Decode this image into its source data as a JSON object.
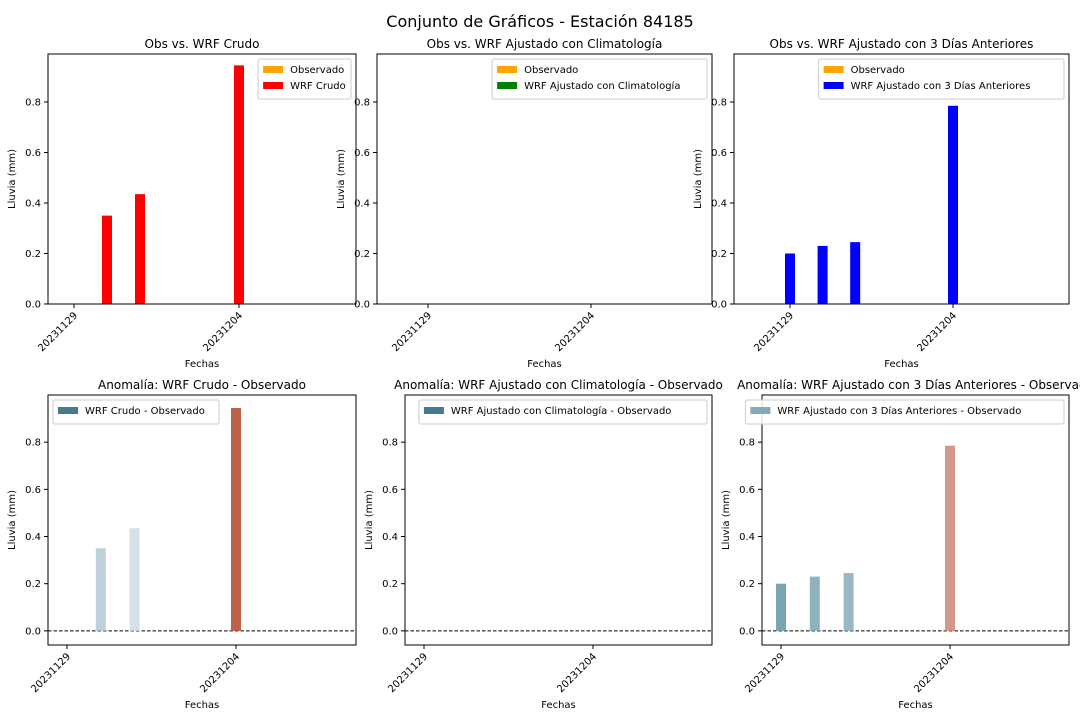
{
  "figure_title": "Conjunto de Gráficos - Estación 84185",
  "chart_data": [
    {
      "type": "bar",
      "title": "Obs vs. WRF Crudo",
      "xlabel": "Fechas",
      "ylabel": "Lluvia (mm)",
      "ylim": [
        0,
        0.99
      ],
      "yticks": [
        "0.0",
        "0.2",
        "0.4",
        "0.6",
        "0.8"
      ],
      "xticks": [
        "20231129",
        "20231204"
      ],
      "legend_position": "top-right",
      "series": [
        {
          "name": "Observado",
          "color": "#ffa500",
          "points": [
            {
              "date": "20231130",
              "value": 0
            },
            {
              "date": "20231201",
              "value": 0
            },
            {
              "date": "20231204",
              "value": 0
            }
          ]
        },
        {
          "name": "WRF Crudo",
          "color": "#ff0000",
          "points": [
            {
              "date": "20231130",
              "value": 0.35
            },
            {
              "date": "20231201",
              "value": 0.435
            },
            {
              "date": "20231204",
              "value": 0.945
            }
          ]
        }
      ]
    },
    {
      "type": "bar",
      "title": "Obs vs. WRF Ajustado con Climatología",
      "xlabel": "Fechas",
      "ylabel": "Lluvia (mm)",
      "ylim": [
        0,
        0.99
      ],
      "yticks": [
        "0.0",
        "0.2",
        "0.4",
        "0.6",
        "0.8"
      ],
      "xticks": [
        "20231129",
        "20231204"
      ],
      "legend_position": "top-right",
      "series": [
        {
          "name": "Observado",
          "color": "#ffa500",
          "points": []
        },
        {
          "name": "WRF Ajustado con Climatología",
          "color": "#008000",
          "points": []
        }
      ]
    },
    {
      "type": "bar",
      "title": "Obs vs. WRF Ajustado con 3 Días Anteriores",
      "xlabel": "Fechas",
      "ylabel": "Lluvia (mm)",
      "ylim": [
        0,
        0.99
      ],
      "yticks": [
        "0.0",
        "0.2",
        "0.4",
        "0.6",
        "0.8"
      ],
      "xticks": [
        "20231129",
        "20231204"
      ],
      "legend_position": "top-right",
      "series": [
        {
          "name": "Observado",
          "color": "#ffa500",
          "points": []
        },
        {
          "name": "WRF Ajustado con 3 Días Anteriores",
          "color": "#0000ff",
          "points": [
            {
              "date": "20231129",
              "value": 0.2
            },
            {
              "date": "20231130",
              "value": 0.23
            },
            {
              "date": "20231201",
              "value": 0.245
            },
            {
              "date": "20231204",
              "value": 0.785
            }
          ]
        }
      ]
    },
    {
      "type": "bar",
      "title": "Anomalía: WRF Crudo - Observado",
      "xlabel": "Fechas",
      "ylabel": "Lluvia (mm)",
      "ylim": [
        -0.06,
        1.0
      ],
      "yticks": [
        "0.0",
        "0.2",
        "0.4",
        "0.6",
        "0.8"
      ],
      "xticks": [
        "20231129",
        "20231204"
      ],
      "legend_position": "top-left",
      "zero_line": true,
      "series": [
        {
          "name": "WRF Crudo - Observado",
          "color": "#457b8f",
          "points": [
            {
              "date": "20231130",
              "value": 0.35,
              "color": "#bcd1da"
            },
            {
              "date": "20231201",
              "value": 0.435,
              "color": "#d5e1e6"
            },
            {
              "date": "20231204",
              "value": 0.945,
              "color": "#c0614a"
            }
          ]
        }
      ]
    },
    {
      "type": "bar",
      "title": "Anomalía: WRF Ajustado con Climatología - Observado",
      "xlabel": "Fechas",
      "ylabel": "Lluvia (mm)",
      "ylim": [
        -0.06,
        1.0
      ],
      "yticks": [
        "0.0",
        "0.2",
        "0.4",
        "0.6",
        "0.8"
      ],
      "xticks": [
        "20231129",
        "20231204"
      ],
      "legend_position": "top-right",
      "zero_line": true,
      "series": [
        {
          "name": "WRF Ajustado con Climatología - Observado",
          "color": "#457b8f",
          "points": []
        }
      ]
    },
    {
      "type": "bar",
      "title": "Anomalía: WRF Ajustado con 3 Días Anteriores - Observado",
      "xlabel": "Fechas",
      "ylabel": "Lluvia (mm)",
      "ylim": [
        -0.06,
        1.0
      ],
      "yticks": [
        "0.0",
        "0.2",
        "0.4",
        "0.6",
        "0.8"
      ],
      "xticks": [
        "20231129",
        "20231204"
      ],
      "legend_position": "top-right",
      "zero_line": true,
      "series": [
        {
          "name": "WRF Ajustado con 3 Días Anteriores - Observado",
          "color": "#85a9b5",
          "points": [
            {
              "date": "20231129",
              "value": 0.2,
              "color": "#7ca5b3"
            },
            {
              "date": "20231130",
              "value": 0.23,
              "color": "#8eb2be"
            },
            {
              "date": "20231201",
              "value": 0.245,
              "color": "#98b8c3"
            },
            {
              "date": "20231204",
              "value": 0.785,
              "color": "#d4978a"
            }
          ]
        }
      ]
    }
  ]
}
